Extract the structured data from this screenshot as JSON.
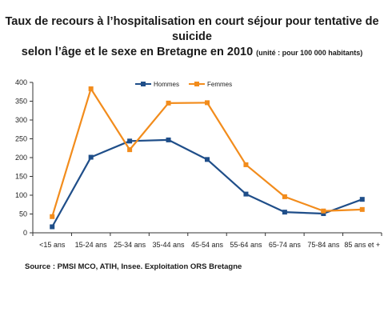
{
  "title": {
    "line1": "Taux de recours à l’hospitalisation en court séjour pour tentative de suicide",
    "line2": "selon l’âge et le sexe en Bretagne en 2010",
    "unit": "(unité : pour 100 000 habitants)"
  },
  "source": "Source : PMSI MCO, ATIH, Insee. Exploitation ORS Bretagne",
  "chart_data": {
    "type": "line",
    "title": "Taux de recours à l’hospitalisation en court séjour pour tentative de suicide selon l’âge et le sexe en Bretagne en 2010 (unité : pour 100 000 habitants)",
    "xlabel": "",
    "ylabel": "",
    "ylim": [
      0,
      400
    ],
    "yticks": [
      0,
      50,
      100,
      150,
      200,
      250,
      300,
      350,
      400
    ],
    "grid": false,
    "legend_position": "top",
    "categories": [
      "<15 ans",
      "15-24 ans",
      "25-34 ans",
      "35-44 ans",
      "45-54 ans",
      "55-64 ans",
      "65-74 ans",
      "75-84 ans",
      "85 ans et +"
    ],
    "series": [
      {
        "name": "Hommes",
        "color": "#1f4e89",
        "marker": "square",
        "values": [
          16,
          201,
          244,
          247,
          195,
          103,
          55,
          51,
          89
        ]
      },
      {
        "name": "Femmes",
        "color": "#f28c1c",
        "marker": "square",
        "values": [
          43,
          383,
          221,
          345,
          346,
          181,
          96,
          58,
          62
        ]
      }
    ]
  }
}
